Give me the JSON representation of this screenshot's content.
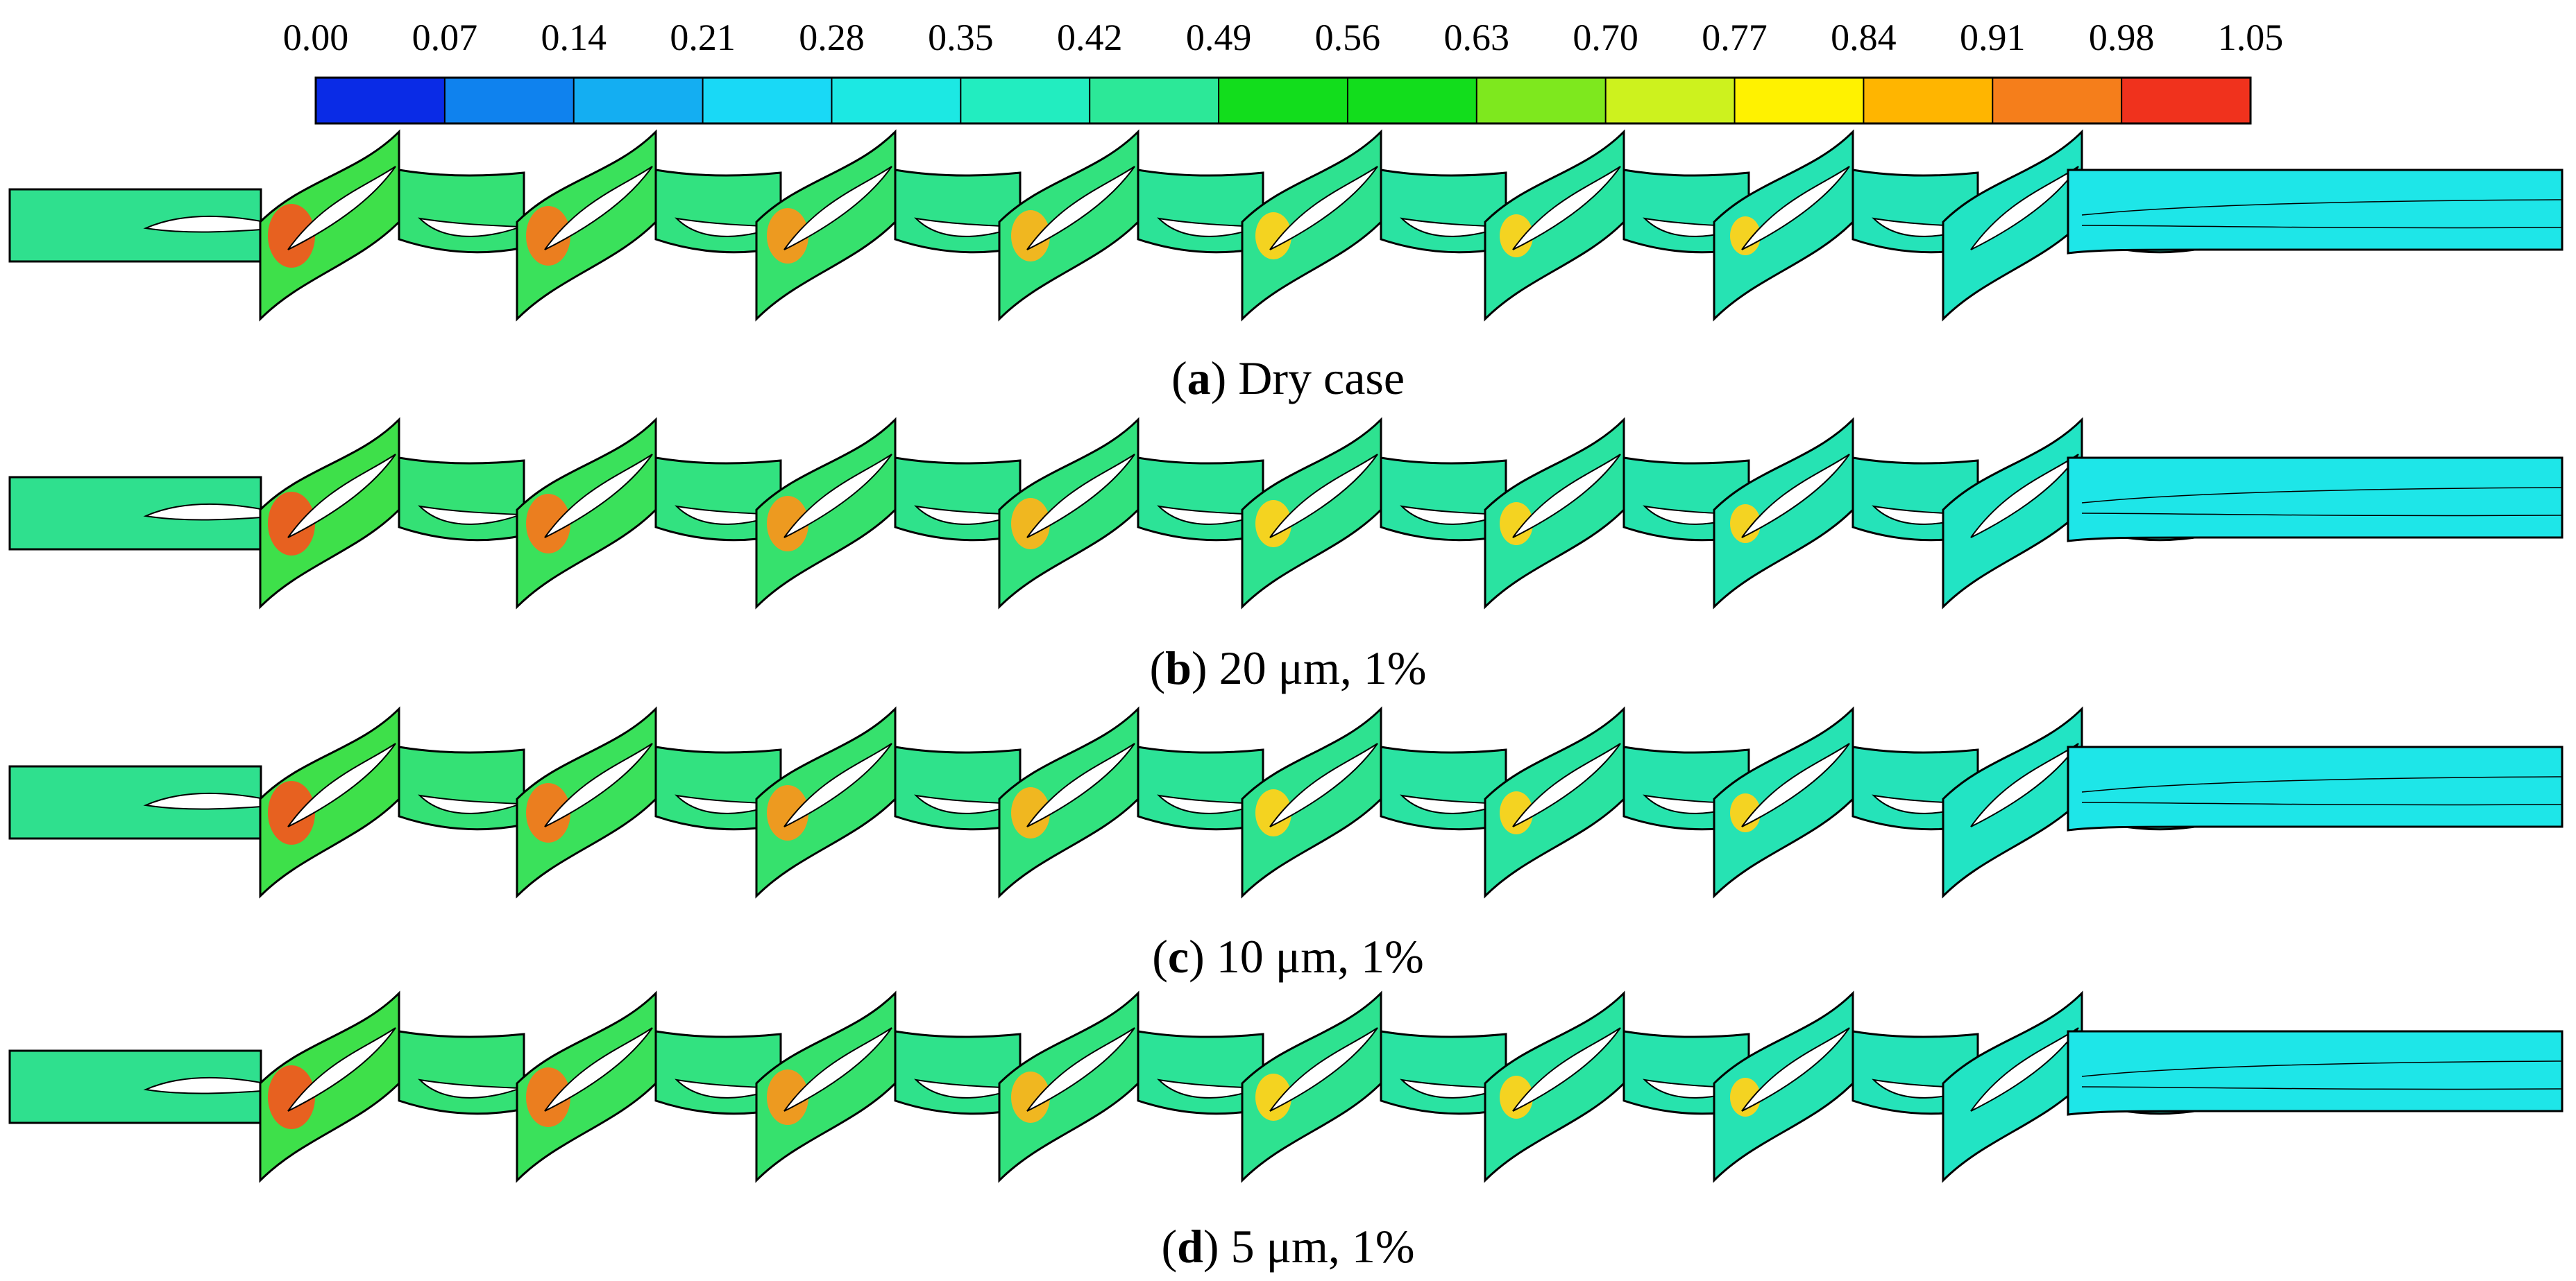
{
  "colorbar": {
    "ticks": [
      "0.00",
      "0.07",
      "0.14",
      "0.21",
      "0.28",
      "0.35",
      "0.42",
      "0.49",
      "0.56",
      "0.63",
      "0.70",
      "0.77",
      "0.84",
      "0.91",
      "0.98",
      "1.05"
    ],
    "colors": [
      "#0a2be6",
      "#0f82ee",
      "#14aef2",
      "#19d9f6",
      "#1ce8e3",
      "#22edc0",
      "#2ce898",
      "#12dd1c",
      "#12dd1c",
      "#7ee81e",
      "#cdf21e",
      "#fff200",
      "#ffb500",
      "#f57e1b",
      "#f0321d"
    ]
  },
  "panels": [
    {
      "letter": "a",
      "rest": ") Dry case",
      "open": "("
    },
    {
      "letter": "b",
      "rest": ") 20 μm, 1%",
      "open": "("
    },
    {
      "letter": "c",
      "rest": ") 10 μm, 1%",
      "open": "("
    },
    {
      "letter": "d",
      "rest": ") 5 μm, 1%",
      "open": "("
    }
  ],
  "colors": {
    "inlet": "#2fe08e",
    "stage_start": "#3ee04a",
    "stage_end": "#22e4c4",
    "outlet": "#1ee6e8",
    "hot": "#f05a1d",
    "warm": "#ffd21a",
    "outline": "#000000"
  }
}
